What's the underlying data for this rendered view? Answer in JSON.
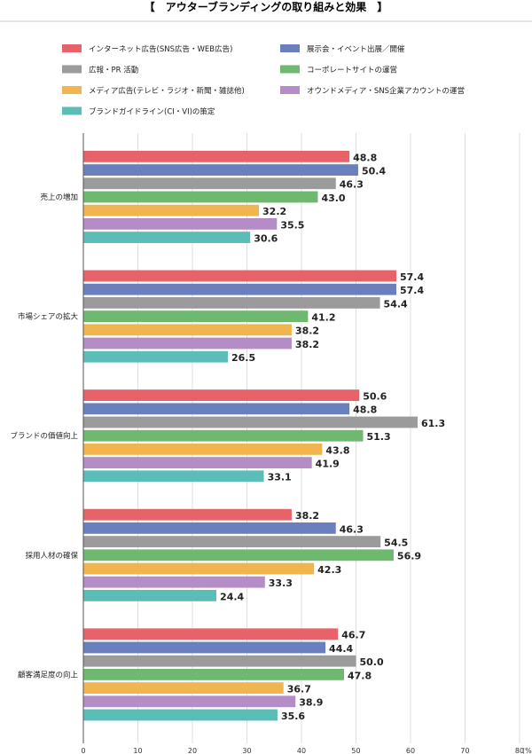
{
  "chart_data": {
    "type": "bar",
    "orientation": "horizontal",
    "title": "【　アウターブランディングの取り組みと効果　】",
    "categories": [
      "売上の増加",
      "市場シェアの拡大",
      "ブランドの価値向上",
      "採用人材の確保",
      "顧客満足度の向上"
    ],
    "series": [
      {
        "name": "インターネット広告(SNS広告・WEB広告)",
        "color": "#e8626a",
        "values": [
          48.8,
          57.4,
          50.6,
          38.2,
          46.7
        ],
        "labels": [
          "48.8",
          "57.4",
          "50.6",
          "38.2",
          "46.7"
        ]
      },
      {
        "name": "展示会・イベント出展／開催",
        "color": "#6a7fbd",
        "values": [
          50.4,
          57.4,
          48.8,
          46.3,
          44.4
        ],
        "labels": [
          "50.4",
          "57.4",
          "48.8",
          "46.3",
          "44.4"
        ]
      },
      {
        "name": "広報・PR 活動",
        "color": "#9b9b9b",
        "values": [
          46.3,
          54.4,
          61.3,
          54.5,
          50.0
        ],
        "labels": [
          "46.3",
          "54.4",
          "61.3",
          "54.5",
          "50.0"
        ]
      },
      {
        "name": "コーポレートサイトの運営",
        "color": "#6fb86f",
        "values": [
          43.0,
          41.2,
          51.3,
          56.9,
          47.8
        ],
        "labels": [
          "43.0",
          "41.2",
          "51.3",
          "56.9",
          "47.8"
        ]
      },
      {
        "name": "メディア広告(テレビ・ラジオ・新聞・雑誌他)",
        "color": "#f0b54e",
        "values": [
          32.2,
          38.2,
          43.8,
          42.3,
          36.7
        ],
        "labels": [
          "32.2",
          "38.2",
          "43.8",
          "42.3",
          "36.7"
        ]
      },
      {
        "name": "オウンドメディア・SNS企業アカウントの運営",
        "color": "#b48cc6",
        "values": [
          35.5,
          38.2,
          41.9,
          33.3,
          38.9
        ],
        "labels": [
          "35.5",
          "38.2",
          "41.9",
          "33.3",
          "38.9"
        ]
      },
      {
        "name": "ブランドガイドライン(CI・VI)の策定",
        "color": "#5bbdb7",
        "values": [
          30.6,
          26.5,
          33.1,
          24.4,
          35.6
        ],
        "labels": [
          "30.6",
          "26.5",
          "33.1",
          "24.4",
          "35.6"
        ]
      }
    ],
    "xlim": [
      0,
      80
    ],
    "x_ticks": [
      "0",
      "10",
      "20",
      "30",
      "40",
      "50",
      "60",
      "70",
      "80"
    ],
    "x_unit": "(%)",
    "grid": true,
    "legend_position": "top"
  }
}
